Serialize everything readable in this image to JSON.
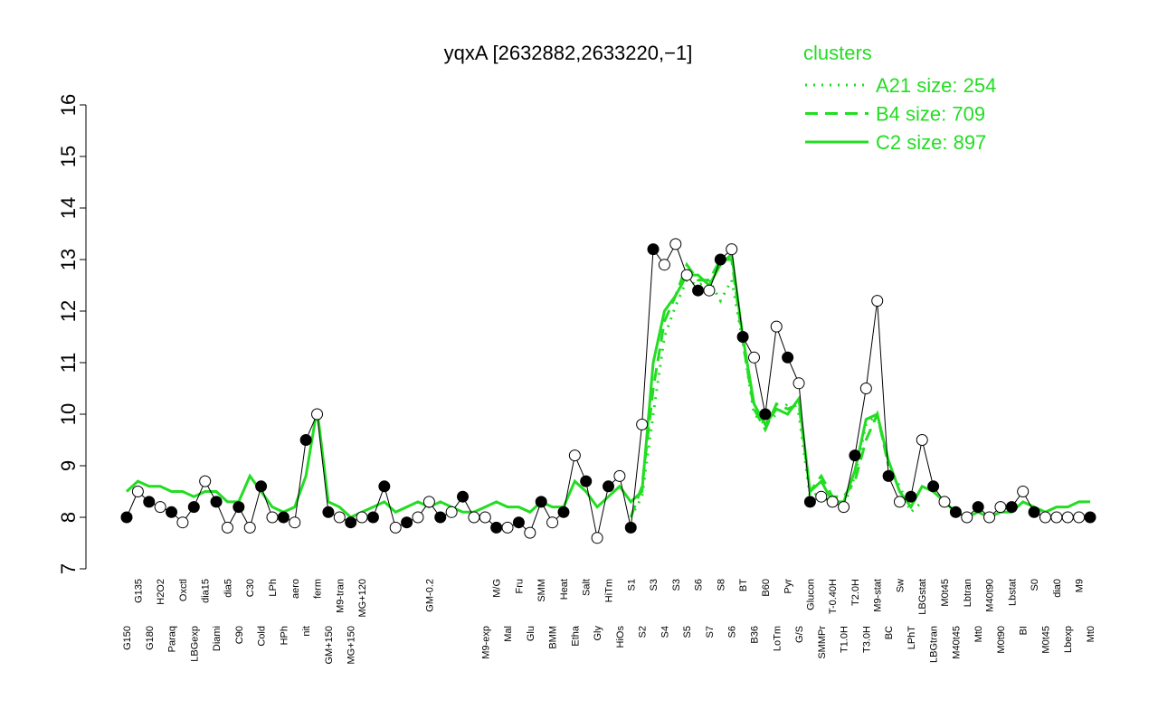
{
  "chart_data": {
    "type": "line",
    "title": "yqxA [2632882,2633220,−1]",
    "legend_title": "clusters",
    "legend": "top-right",
    "ylim": [
      7,
      16
    ],
    "yticks": [
      7,
      8,
      9,
      10,
      11,
      12,
      13,
      14,
      15,
      16
    ],
    "categories": [
      "G150",
      "G135",
      "G180",
      "H2O2",
      "Paraq",
      "Oxctl",
      "LBGexp",
      "dia15",
      "Diami",
      "dia5",
      "C90",
      "C30",
      "Cold",
      "LPh",
      "HPh",
      "aero",
      "nit",
      "ferm",
      "GM+150",
      "M9-tran",
      "MG+150",
      "MG+120",
      null,
      null,
      null,
      null,
      null,
      "GM-0.2",
      null,
      null,
      null,
      null,
      "M9-exp",
      "M/G",
      "Mal",
      "Fru",
      "Glu",
      "SMM",
      "BMM",
      "Heat",
      "Etha",
      "Salt",
      "Gly",
      "HiTm",
      "HiOs",
      "S1",
      "S2",
      "S3",
      "S4",
      "S3",
      "S5",
      "S6",
      "S7",
      "S8",
      "S6",
      "BT",
      "B36",
      "B60",
      "LoTm",
      "Pyr",
      "G/S",
      "Glucon",
      "SMMPr",
      "T-0.40H",
      "T1.0H",
      "T2.0H",
      "T3.0H",
      "M9-stat",
      "BC",
      "Sw",
      "LPhT",
      "LBGstat",
      "LBGtran",
      "M0t45",
      "M40t45",
      "Lbtran",
      "Mt0",
      "M40t90",
      "M0t90",
      "Lbstat",
      "BI",
      "S0",
      "M0t45",
      "dia0",
      "Lbexp",
      "M9",
      "Mt0"
    ],
    "values": [
      8.0,
      8.5,
      8.3,
      8.2,
      8.1,
      7.9,
      8.2,
      8.7,
      8.3,
      7.8,
      8.2,
      7.8,
      8.6,
      8.0,
      8.0,
      7.9,
      9.5,
      10.0,
      8.1,
      8.0,
      7.9,
      8.0,
      8.0,
      8.6,
      7.8,
      7.9,
      8.0,
      8.3,
      8.0,
      8.1,
      8.4,
      8.0,
      8.0,
      7.8,
      7.8,
      7.9,
      7.7,
      8.3,
      7.9,
      8.1,
      9.2,
      8.7,
      7.6,
      8.6,
      8.8,
      7.8,
      9.8,
      13.2,
      12.9,
      13.3,
      12.7,
      12.4,
      12.4,
      13.0,
      13.2,
      11.5,
      11.1,
      10.0,
      11.7,
      11.1,
      10.6,
      8.3,
      8.4,
      8.3,
      8.2,
      9.2,
      10.5,
      12.2,
      8.8,
      8.3,
      8.4,
      9.5,
      8.6,
      8.3,
      8.1,
      8.0,
      8.2,
      8.0,
      8.2,
      8.2,
      8.5,
      8.1,
      8.0,
      8.0,
      8.0,
      8.0,
      8.0
    ],
    "point_fills": [
      "#000",
      "#fff",
      "#000",
      "#fff",
      "#000",
      "#fff",
      "#000",
      "#fff",
      "#000",
      "#fff",
      "#000",
      "#fff",
      "#000",
      "#fff",
      "#000",
      "#fff",
      "#000",
      "#fff",
      "#000",
      "#fff",
      "#000",
      "#fff",
      "#000",
      "#000",
      "#fff",
      "#000",
      "#fff",
      "#fff",
      "#000",
      "#fff",
      "#000",
      "#fff",
      "#fff",
      "#000",
      "#fff",
      "#000",
      "#fff",
      "#000",
      "#fff",
      "#000",
      "#fff",
      "#000",
      "#fff",
      "#000",
      "#fff",
      "#000",
      "#fff",
      "#000",
      "#fff",
      "#fff",
      "#fff",
      "#000",
      "#fff",
      "#000",
      "#fff",
      "#000",
      "#fff",
      "#000",
      "#fff",
      "#000",
      "#fff",
      "#000",
      "#fff",
      "#fff",
      "#fff",
      "#000",
      "#fff",
      "#fff",
      "#000",
      "#fff",
      "#000",
      "#fff",
      "#000",
      "#fff",
      "#000",
      "#fff",
      "#000",
      "#fff",
      "#fff",
      "#000",
      "#fff",
      "#000",
      "#fff",
      "#fff",
      "#fff",
      "#fff",
      "#000"
    ],
    "series": [
      {
        "name": "A21 size: 254",
        "color": "#22dd22",
        "dash": "dotted",
        "values": [
          null,
          null,
          null,
          null,
          null,
          null,
          null,
          null,
          null,
          null,
          null,
          null,
          null,
          null,
          null,
          null,
          null,
          null,
          null,
          null,
          null,
          null,
          null,
          null,
          null,
          null,
          null,
          null,
          null,
          null,
          null,
          null,
          null,
          null,
          null,
          null,
          null,
          null,
          null,
          null,
          null,
          null,
          null,
          null,
          null,
          8.0,
          8.4,
          10.0,
          11.5,
          12.1,
          12.6,
          12.5,
          12.6,
          12.2,
          12.6,
          11.4,
          10.0,
          9.8,
          10.0,
          10.2,
          10.0,
          8.4,
          8.5,
          8.2,
          8.2,
          8.8,
          9.8,
          10.0,
          9.0,
          8.6,
          8.1,
          8.3,
          null,
          null,
          null,
          null,
          null,
          null,
          null,
          null,
          null,
          null,
          null,
          null,
          null,
          null,
          null
        ]
      },
      {
        "name": "B4 size: 709",
        "color": "#22dd22",
        "dash": "dashed",
        "values": [
          null,
          null,
          null,
          null,
          null,
          null,
          null,
          null,
          null,
          null,
          null,
          null,
          null,
          null,
          null,
          null,
          null,
          null,
          null,
          null,
          null,
          null,
          null,
          null,
          null,
          null,
          null,
          null,
          null,
          null,
          null,
          null,
          null,
          null,
          null,
          null,
          null,
          null,
          null,
          null,
          null,
          null,
          null,
          null,
          null,
          8.0,
          8.6,
          10.5,
          11.8,
          12.3,
          12.9,
          12.6,
          12.6,
          13.0,
          13.0,
          11.4,
          10.1,
          9.7,
          10.2,
          10.1,
          10.2,
          8.5,
          8.8,
          8.4,
          8.4,
          8.7,
          9.5,
          10.0,
          9.0,
          null,
          null,
          null,
          null,
          null,
          null,
          null,
          null,
          null,
          null,
          null,
          null,
          null,
          null,
          null,
          null,
          null,
          null
        ]
      },
      {
        "name": "C2 size: 897",
        "color": "#22dd22",
        "dash": "solid",
        "values": [
          8.5,
          8.7,
          8.6,
          8.6,
          8.5,
          8.5,
          8.4,
          8.5,
          8.5,
          8.3,
          8.3,
          8.8,
          8.5,
          8.2,
          8.1,
          8.2,
          8.8,
          10.1,
          8.3,
          8.2,
          8.0,
          8.1,
          8.2,
          8.3,
          8.1,
          8.2,
          8.3,
          8.2,
          8.3,
          8.2,
          8.1,
          8.1,
          8.2,
          8.3,
          8.2,
          8.2,
          8.1,
          8.3,
          8.2,
          8.2,
          8.7,
          8.5,
          8.2,
          8.4,
          8.6,
          8.3,
          8.5,
          11.0,
          12.0,
          12.3,
          12.7,
          12.7,
          12.5,
          12.9,
          13.1,
          11.5,
          10.2,
          9.8,
          10.1,
          10.0,
          10.3,
          8.5,
          8.7,
          8.3,
          8.3,
          8.9,
          9.9,
          10.0,
          9.1,
          8.5,
          8.2,
          8.6,
          8.5,
          8.3,
          8.1,
          8.0,
          8.1,
          8.0,
          8.1,
          8.1,
          8.3,
          8.2,
          8.1,
          8.2,
          8.2,
          8.3,
          8.3
        ]
      }
    ]
  }
}
